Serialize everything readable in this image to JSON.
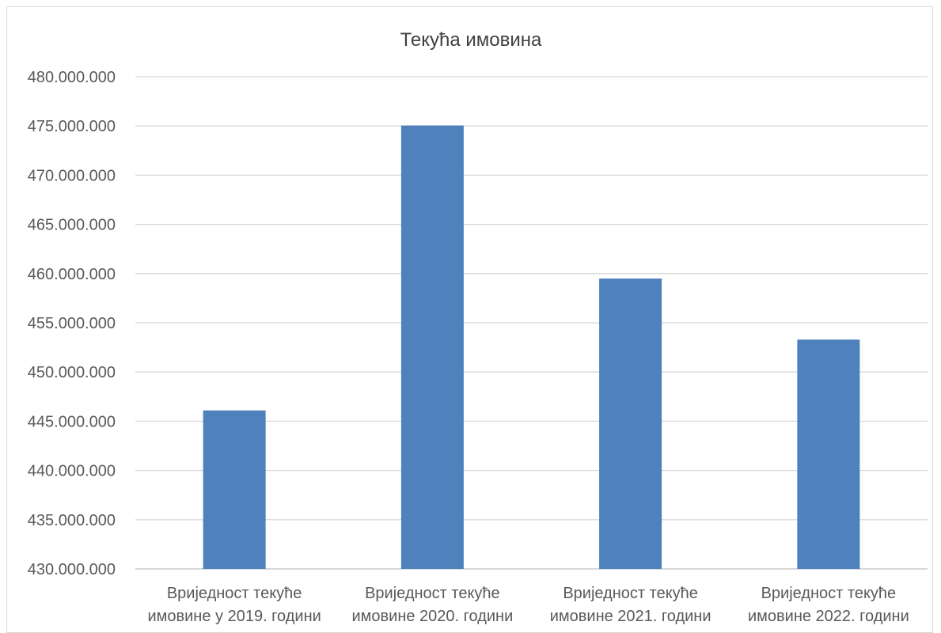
{
  "chart_data": {
    "type": "bar",
    "title": "Текућа имовина",
    "categories": [
      [
        "Вриједност текуће",
        "имовине у 2019. години"
      ],
      [
        "Вриједност текуће",
        "имовине 2020. години"
      ],
      [
        "Вриједност текуће",
        "имовине 2021. години"
      ],
      [
        "Вриједност текуће",
        "имовине 2022. години"
      ]
    ],
    "values": [
      446100000,
      475050000,
      459500000,
      453300000
    ],
    "ylim": [
      430000000,
      480000000
    ],
    "yticks": [
      "430.000.000",
      "435.000.000",
      "440.000.000",
      "445.000.000",
      "450.000.000",
      "455.000.000",
      "460.000.000",
      "465.000.000",
      "470.000.000",
      "475.000.000",
      "480.000.000"
    ],
    "ytick_values": [
      430000000,
      435000000,
      440000000,
      445000000,
      450000000,
      455000000,
      460000000,
      465000000,
      470000000,
      475000000,
      480000000
    ],
    "xlabel": "",
    "ylabel": "",
    "grid": true,
    "legend": "none",
    "bar_color": "#4f81bd"
  }
}
